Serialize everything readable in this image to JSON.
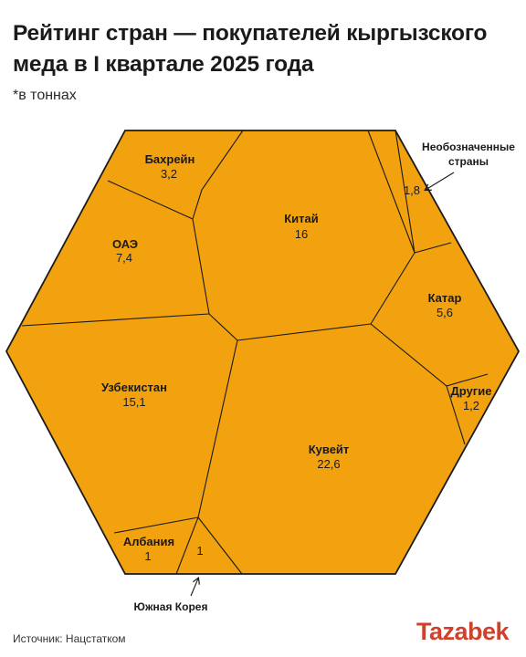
{
  "title": "Рейтинг стран — покупателей кыргызского меда в I квартале 2025 года",
  "subtitle": "*в тоннах",
  "source": "Источник: Нацстатком",
  "logo": "Tazabek",
  "colors": {
    "fill": "#F2A10F",
    "stroke": "#1a1a1a"
  },
  "chart_data": {
    "type": "voronoi-treemap",
    "title": "Рейтинг стран — покупателей кыргызского меда в I квартале 2025 года",
    "unit": "тонны",
    "items": [
      {
        "name": "Кувейт",
        "value": "22,6"
      },
      {
        "name": "Китай",
        "value": "16"
      },
      {
        "name": "Узбекистан",
        "value": "15,1"
      },
      {
        "name": "ОАЭ",
        "value": "7,4"
      },
      {
        "name": "Катар",
        "value": "5,6"
      },
      {
        "name": "Бахрейн",
        "value": "3,2"
      },
      {
        "name": "Необозначенные страны",
        "value": "1,8"
      },
      {
        "name": "Другие",
        "value": "1,2"
      },
      {
        "name": "Албания",
        "value": "1"
      },
      {
        "name": "Южная Корея",
        "value": "1"
      }
    ]
  }
}
